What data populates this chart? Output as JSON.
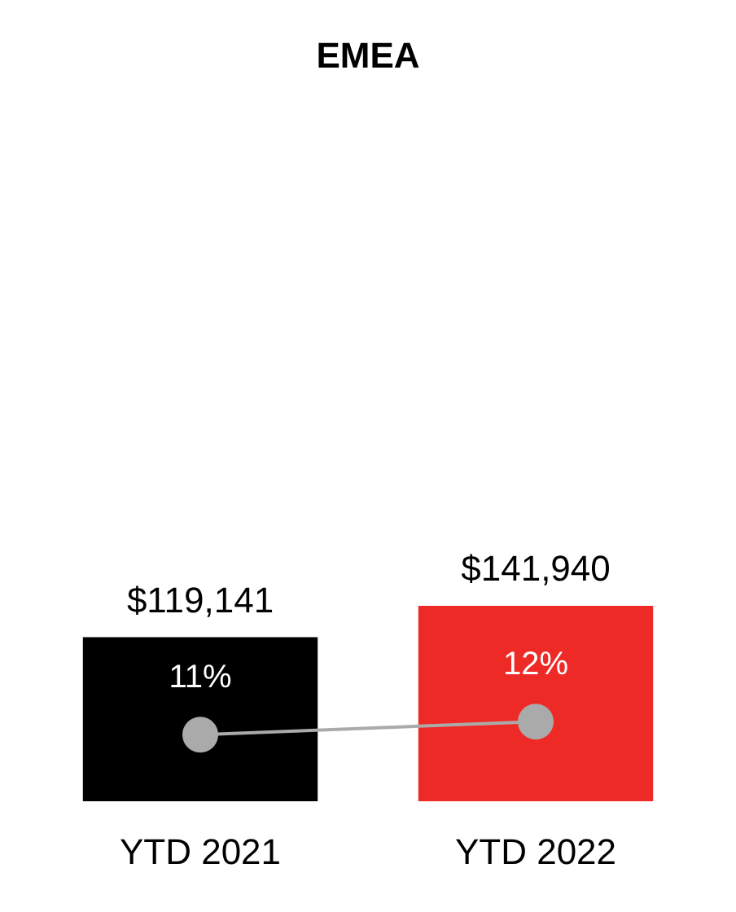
{
  "chart_data": {
    "type": "bar",
    "title": "EMEA",
    "categories": [
      "YTD 2021",
      "YTD 2022"
    ],
    "series": [
      {
        "colors": [
          "#000000",
          "#ee2a27"
        ],
        "values": [
          119141,
          141940
        ],
        "value_labels": [
          "$119,141",
          "$141,940"
        ]
      },
      {
        "type": "line",
        "axis": "y2",
        "color": "#aaaaaa",
        "values": [
          11,
          12
        ],
        "value_labels": [
          "11%",
          "12%"
        ],
        "marker": "circle"
      }
    ]
  }
}
